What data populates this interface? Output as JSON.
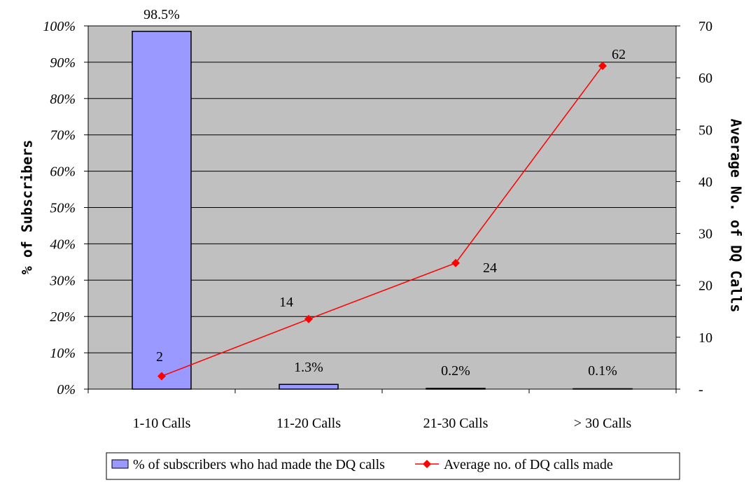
{
  "chart_data": {
    "type": "bar",
    "categories": [
      "1-10 Calls",
      "11-20 Calls",
      "21-30 Calls",
      "> 30 Calls"
    ],
    "series": [
      {
        "name": "% of subscribers who had made the DQ calls",
        "type": "bar",
        "axis": "left",
        "values": [
          98.5,
          1.3,
          0.2,
          0.1
        ],
        "labels": [
          "98.5%",
          "1.3%",
          "0.2%",
          "0.1%"
        ],
        "color": "#9999ff"
      },
      {
        "name": "Average no. of DQ calls made",
        "type": "line",
        "axis": "right",
        "values": [
          2.5,
          13.5,
          24.3,
          62.3
        ],
        "labels": [
          "2",
          "14",
          "24",
          "62"
        ],
        "color": "#ff0000"
      }
    ],
    "ylabel": "% of Subscribers",
    "y2label": "Average No. of DQ Calls",
    "ylim": [
      0,
      100
    ],
    "y2lim": [
      0,
      70
    ],
    "yticks": [
      "0%",
      "10%",
      "20%",
      "30%",
      "40%",
      "50%",
      "60%",
      "70%",
      "80%",
      "90%",
      "100%"
    ],
    "y2ticks": [
      "-",
      "10",
      "20",
      "30",
      "40",
      "50",
      "60",
      "70"
    ],
    "grid": true,
    "plot_background": "#c0c0c0",
    "legend_position": "bottom"
  }
}
